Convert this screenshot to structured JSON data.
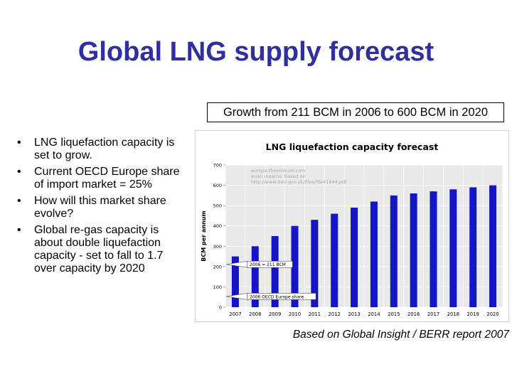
{
  "slide": {
    "title": "Global LNG supply forecast",
    "growth_note": "Growth from 211 BCM in 2006 to 600 BCM in 2020",
    "bullets": [
      "LNG liquefaction capacity is set to grow.",
      "Current OECD Europe share of import market = 25%",
      "How will this market share evolve?",
      "Global re-gas capacity is about double liquefaction capacity - set to fall to 1.7 over capacity by 2020"
    ],
    "bullet_symbol": "•",
    "source_note": "Based on Global Insight / BERR report 2007"
  },
  "chart_data": {
    "type": "bar",
    "title": "LNG liquefaction capacity forecast",
    "xlabel": "",
    "ylabel": "BCM per annum",
    "categories": [
      "2007",
      "2008",
      "2009",
      "2010",
      "2011",
      "2012",
      "2013",
      "2014",
      "2015",
      "2016",
      "2017",
      "2018",
      "2019",
      "2020"
    ],
    "values": [
      250,
      300,
      350,
      400,
      430,
      460,
      490,
      520,
      550,
      560,
      570,
      580,
      590,
      600
    ],
    "ylim": [
      0,
      700
    ],
    "yticks": [
      0,
      100,
      200,
      300,
      400,
      500,
      600,
      700
    ],
    "grid": true,
    "bar_color": "#1515c8",
    "watermark": [
      "europe.theoildrum.com",
      "euan mearns: based on",
      "http://www.berr.gov.uk/files/file41844.pdf"
    ],
    "annotations": [
      {
        "text": "2006 = 211 BCM",
        "y": 211
      },
      {
        "text": "2006 OECD Europe share",
        "y": 53
      }
    ]
  }
}
